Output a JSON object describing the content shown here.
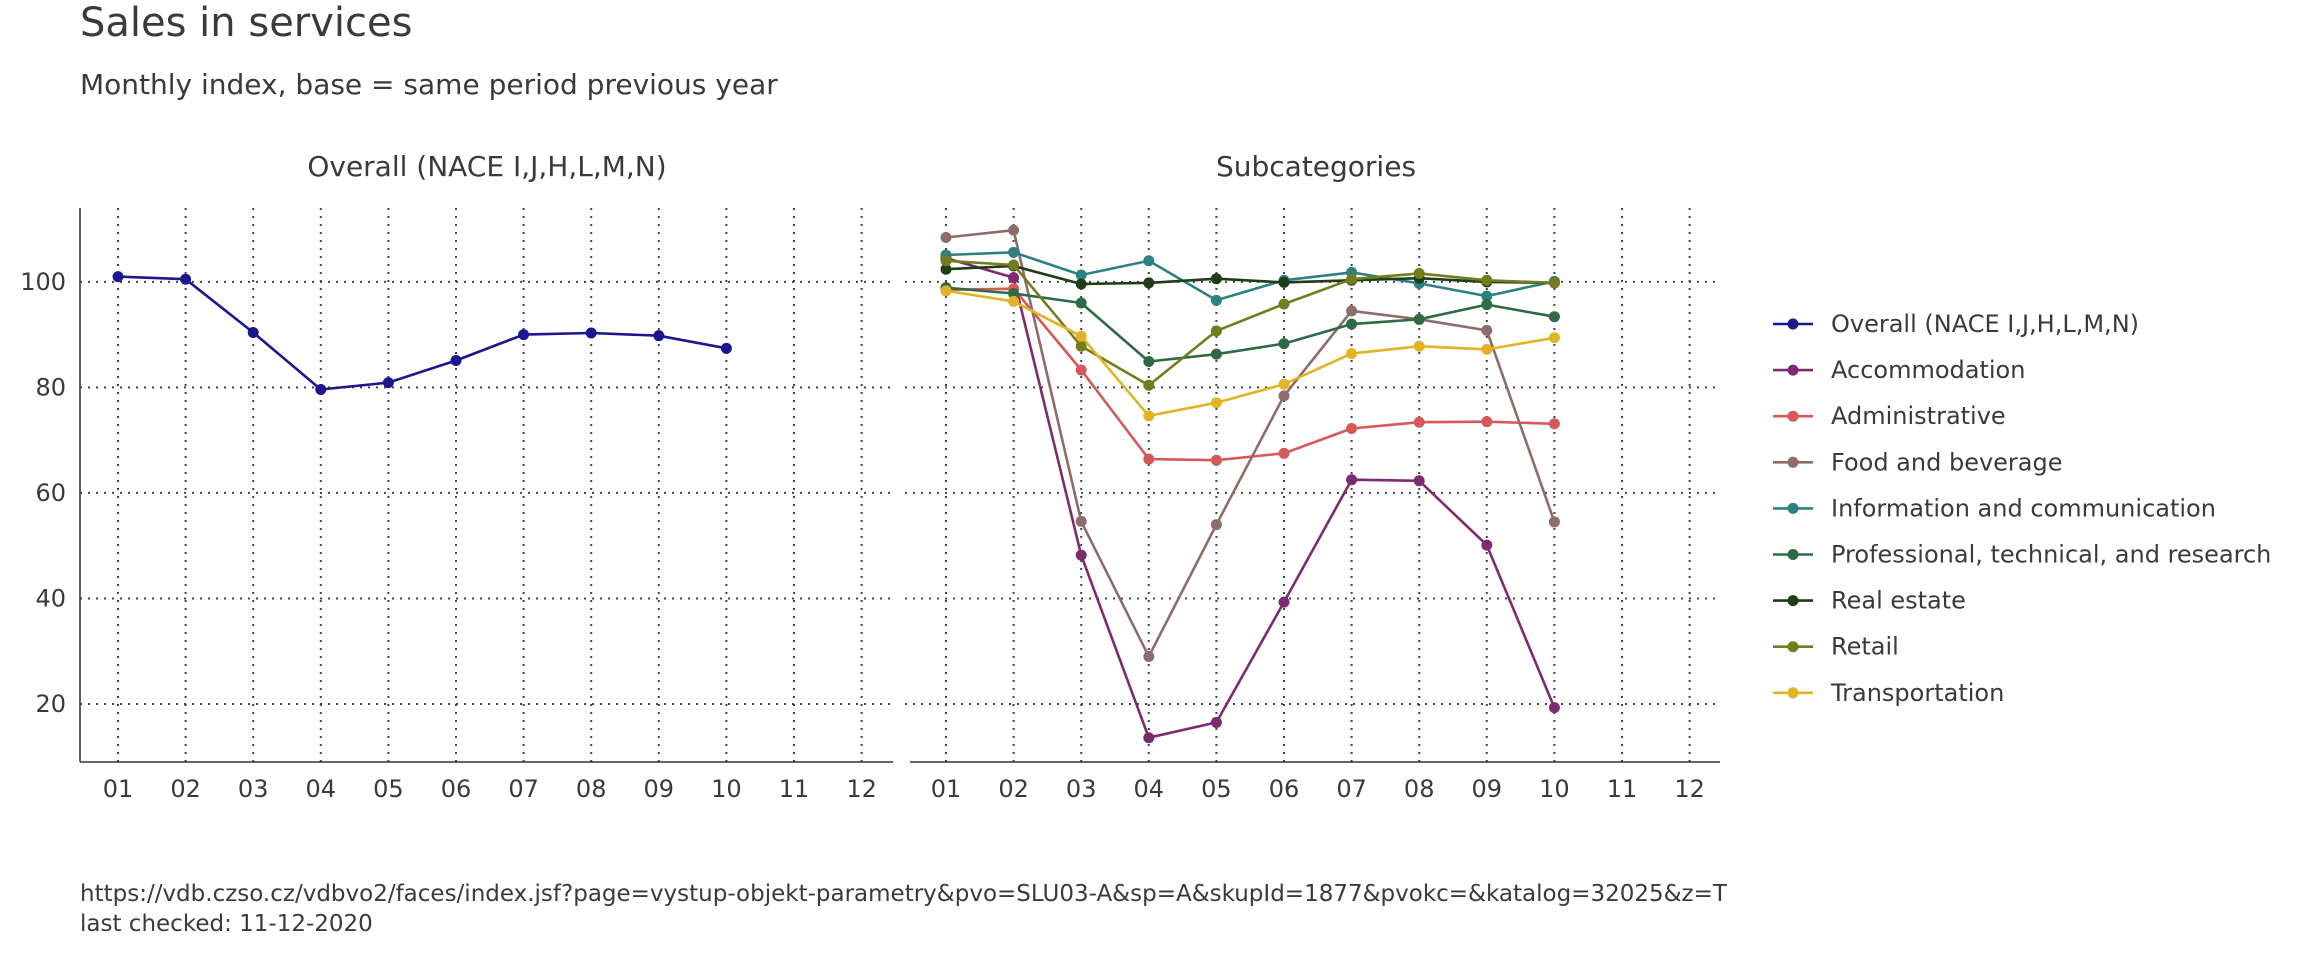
{
  "title": "Sales in services",
  "subtitle": "Monthly index, base = same period previous year",
  "caption": {
    "url": "https://vdb.czso.cz/vdbvo2/faces/index.jsf?page=vystup-objekt-parametry&pvo=SLU03-A&sp=A&skupId=1877&pvokc=&katalog=32025&z=T",
    "checked": "last checked: 11-12-2020"
  },
  "chart_data": [
    {
      "type": "line",
      "title": "Overall (NACE I,J,H,L,M,N)",
      "x": [
        "01",
        "02",
        "03",
        "04",
        "05",
        "06",
        "07",
        "08",
        "09",
        "10",
        "11",
        "12"
      ],
      "ylim": [
        9,
        114
      ],
      "yticks": [
        20,
        40,
        60,
        80,
        100
      ],
      "grid": true,
      "series": [
        {
          "name": "Overall (NACE I,J,H,L,M,N)",
          "color": "#1c168f",
          "values": [
            101.0,
            100.5,
            90.4,
            79.6,
            80.9,
            85.1,
            90.0,
            90.3,
            89.8,
            87.4,
            null,
            null
          ]
        }
      ]
    },
    {
      "type": "line",
      "title": "Subcategories",
      "x": [
        "01",
        "02",
        "03",
        "04",
        "05",
        "06",
        "07",
        "08",
        "09",
        "10",
        "11",
        "12"
      ],
      "ylim": [
        9,
        114
      ],
      "yticks": [
        20,
        40,
        60,
        80,
        100
      ],
      "grid": true,
      "legend_position": "right",
      "series": [
        {
          "name": "Accommodation",
          "color": "#7d2b70",
          "values": [
            104.5,
            100.8,
            48.2,
            13.6,
            16.5,
            39.3,
            62.5,
            62.3,
            50.1,
            19.3,
            null,
            null
          ]
        },
        {
          "name": "Administrative",
          "color": "#d65858",
          "values": [
            98.5,
            98.7,
            83.3,
            66.4,
            66.2,
            67.5,
            72.2,
            73.4,
            73.5,
            73.1,
            null,
            null
          ]
        },
        {
          "name": "Food and beverage",
          "color": "#8c6d6a",
          "values": [
            108.4,
            109.8,
            54.6,
            29.0,
            54.0,
            78.4,
            94.5,
            92.9,
            90.8,
            54.5,
            null,
            null
          ]
        },
        {
          "name": "Information and communication",
          "color": "#2f8080",
          "values": [
            105.1,
            105.6,
            101.3,
            104.0,
            96.5,
            100.3,
            101.8,
            99.7,
            97.3,
            100.1,
            null,
            null
          ]
        },
        {
          "name": "Professional, technical, and research",
          "color": "#2d6a45",
          "values": [
            98.9,
            97.8,
            96.0,
            84.9,
            86.3,
            88.3,
            92.0,
            92.9,
            95.7,
            93.4,
            null,
            null
          ]
        },
        {
          "name": "Real estate",
          "color": "#1f3d17",
          "values": [
            102.4,
            103.0,
            99.6,
            99.8,
            100.6,
            99.9,
            100.3,
            100.7,
            100.0,
            99.8,
            null,
            null
          ]
        },
        {
          "name": "Retail",
          "color": "#737d1e",
          "values": [
            104.0,
            103.2,
            87.8,
            80.4,
            90.7,
            95.8,
            100.5,
            101.6,
            100.3,
            99.8,
            null,
            null
          ]
        },
        {
          "name": "Transportation",
          "color": "#e0b424",
          "values": [
            98.3,
            96.3,
            89.7,
            74.6,
            77.1,
            80.6,
            86.4,
            87.8,
            87.2,
            89.4,
            null,
            null
          ]
        }
      ]
    }
  ]
}
